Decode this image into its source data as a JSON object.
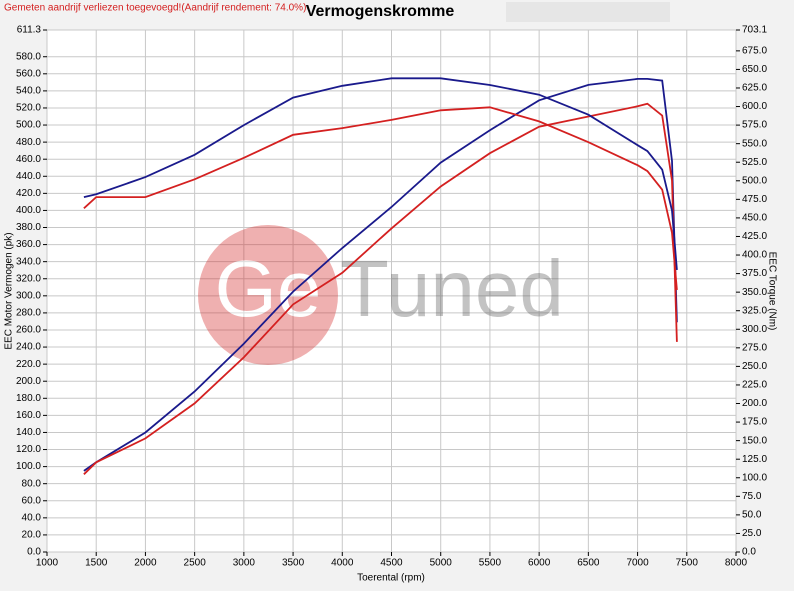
{
  "chart_data": {
    "type": "line",
    "title": "Vermogenskromme",
    "note": "Gemeten aandrijf verliezen toegevoegd!(Aandrijf rendement: 74.0%)",
    "watermark": [
      "Ge",
      "Tuned"
    ],
    "x_label": "Toerental (rpm)",
    "y_label": "EEC Motor Vermogen (pk)",
    "y2_label": "EEC Torque (Nm)",
    "grid": true,
    "x": [
      1375,
      1500,
      2000,
      2500,
      3000,
      3500,
      4000,
      4500,
      5000,
      5500,
      6000,
      6500,
      7000,
      7100,
      7250,
      7350,
      7400
    ],
    "series": [
      {
        "color": "#1a1a8c",
        "axis": "y",
        "values": [
          95,
          105,
          140,
          188,
          244,
          305,
          356,
          404,
          456,
          494,
          529,
          547,
          554,
          554,
          552,
          458,
          269
        ]
      },
      {
        "color": "#d42020",
        "axis": "y",
        "values": [
          91,
          105,
          133,
          174,
          228,
          290,
          327,
          379,
          428,
          467,
          498,
          510,
          522,
          525,
          511,
          435,
          246
        ]
      },
      {
        "color": "#1a1a8c",
        "axis": "y2",
        "values": [
          478,
          482,
          505,
          535,
          575,
          612,
          628,
          638,
          638,
          629,
          616,
          589,
          548,
          540,
          515,
          460,
          380
        ]
      },
      {
        "color": "#d42020",
        "axis": "y2",
        "values": [
          463,
          478,
          478,
          502,
          531,
          562,
          571,
          582,
          595,
          599,
          580,
          552,
          521,
          513,
          488,
          430,
          353
        ]
      }
    ],
    "xlim": [
      1000,
      8000
    ],
    "xticks": [
      1000,
      1500,
      2000,
      2500,
      3000,
      3500,
      4000,
      4500,
      5000,
      5500,
      6000,
      6500,
      7000,
      7500,
      8000
    ],
    "ylim": [
      0,
      611.3
    ],
    "yticks": [
      {
        "value": 0,
        "label": "0.0"
      },
      {
        "value": 20,
        "label": "20.0"
      },
      {
        "value": 40,
        "label": "40.0"
      },
      {
        "value": 60,
        "label": "60.0"
      },
      {
        "value": 80,
        "label": "80.0"
      },
      {
        "value": 100,
        "label": "100.0"
      },
      {
        "value": 120,
        "label": "120.0"
      },
      {
        "value": 140,
        "label": "140.0"
      },
      {
        "value": 160,
        "label": "160.0"
      },
      {
        "value": 180,
        "label": "180.0"
      },
      {
        "value": 200,
        "label": "200.0"
      },
      {
        "value": 220,
        "label": "220.0"
      },
      {
        "value": 240,
        "label": "240.0"
      },
      {
        "value": 260,
        "label": "260.0"
      },
      {
        "value": 280,
        "label": "280.0"
      },
      {
        "value": 300,
        "label": "300.0"
      },
      {
        "value": 320,
        "label": "320.0"
      },
      {
        "value": 340,
        "label": "340.0"
      },
      {
        "value": 360,
        "label": "360.0"
      },
      {
        "value": 380,
        "label": "380.0"
      },
      {
        "value": 400,
        "label": "400.0"
      },
      {
        "value": 420,
        "label": "420.0"
      },
      {
        "value": 440,
        "label": "440.0"
      },
      {
        "value": 460,
        "label": "460.0"
      },
      {
        "value": 480,
        "label": "480.0"
      },
      {
        "value": 500,
        "label": "500.0"
      },
      {
        "value": 520,
        "label": "520.0"
      },
      {
        "value": 540,
        "label": "540.0"
      },
      {
        "value": 560,
        "label": "560.0"
      },
      {
        "value": 580,
        "label": "580.0"
      },
      611.3
    ],
    "y2lim": [
      0,
      703.1
    ],
    "y2ticks": [
      {
        "value": 0,
        "label": "0.0"
      },
      {
        "value": 25,
        "label": "25.0"
      },
      {
        "value": 50,
        "label": "50.0"
      },
      {
        "value": 75,
        "label": "75.0"
      },
      {
        "value": 100,
        "label": "100.0"
      },
      {
        "value": 125,
        "label": "125.0"
      },
      {
        "value": 150,
        "label": "150.0"
      },
      {
        "value": 175,
        "label": "175.0"
      },
      {
        "value": 200,
        "label": "200.0"
      },
      {
        "value": 225,
        "label": "225.0"
      },
      {
        "value": 250,
        "label": "250.0"
      },
      {
        "value": 275,
        "label": "275.0"
      },
      {
        "value": 300,
        "label": "300.0"
      },
      {
        "value": 325,
        "label": "325.0"
      },
      {
        "value": 350,
        "label": "350.0"
      },
      {
        "value": 375,
        "label": "375.0"
      },
      {
        "value": 400,
        "label": "400.0"
      },
      {
        "value": 425,
        "label": "425.0"
      },
      {
        "value": 450,
        "label": "450.0"
      },
      {
        "value": 475,
        "label": "475.0"
      },
      {
        "value": 500,
        "label": "500.0"
      },
      {
        "value": 525,
        "label": "525.0"
      },
      {
        "value": 550,
        "label": "550.0"
      },
      {
        "value": 575,
        "label": "575.0"
      },
      {
        "value": 600,
        "label": "600.0"
      },
      {
        "value": 625,
        "label": "625.0"
      },
      {
        "value": 650,
        "label": "650.0"
      },
      {
        "value": 675,
        "label": "675.0"
      },
      703.1
    ]
  }
}
